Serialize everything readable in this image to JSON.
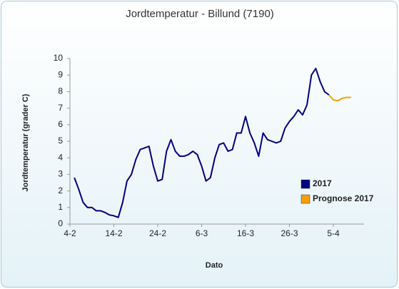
{
  "chart_data": {
    "type": "line",
    "title": "Jordtemperatur - Billund (7190)",
    "xlabel": "Dato",
    "ylabel": "Jordtemperatur (grader C)",
    "categories": [
      "4-2",
      null,
      null,
      null,
      null,
      null,
      null,
      null,
      null,
      null,
      "14-2",
      null,
      null,
      null,
      null,
      null,
      null,
      null,
      null,
      null,
      "24-2",
      null,
      null,
      null,
      null,
      null,
      null,
      null,
      null,
      null,
      "6-3",
      null,
      null,
      null,
      null,
      null,
      null,
      null,
      null,
      null,
      "16-3",
      null,
      null,
      null,
      null,
      null,
      null,
      null,
      null,
      null,
      "26-3",
      null,
      null,
      null,
      null,
      null,
      null,
      null,
      null,
      null,
      "5-4",
      null,
      null,
      null,
      null,
      null,
      null,
      null
    ],
    "series": [
      {
        "name": "2017",
        "color": "#000080",
        "values": [
          null,
          2.8,
          2.1,
          1.3,
          1.0,
          1.0,
          0.8,
          0.8,
          0.7,
          0.55,
          0.5,
          0.4,
          1.3,
          2.6,
          3.0,
          3.9,
          4.5,
          4.6,
          4.7,
          3.5,
          2.6,
          2.7,
          4.4,
          5.1,
          4.4,
          4.1,
          4.1,
          4.2,
          4.4,
          4.2,
          3.5,
          2.6,
          2.8,
          4.0,
          4.8,
          4.9,
          4.4,
          4.5,
          5.5,
          5.5,
          6.5,
          5.5,
          4.9,
          4.1,
          5.5,
          5.1,
          5.0,
          4.9,
          5.0,
          5.8,
          6.2,
          6.5,
          6.9,
          6.6,
          7.2,
          9.0,
          9.4,
          8.6,
          8.0,
          7.8,
          null,
          null,
          null,
          null,
          null,
          null,
          null,
          null
        ]
      },
      {
        "name": "Prognose 2017",
        "color": "#f5a000",
        "values": [
          null,
          null,
          null,
          null,
          null,
          null,
          null,
          null,
          null,
          null,
          null,
          null,
          null,
          null,
          null,
          null,
          null,
          null,
          null,
          null,
          null,
          null,
          null,
          null,
          null,
          null,
          null,
          null,
          null,
          null,
          null,
          null,
          null,
          null,
          null,
          null,
          null,
          null,
          null,
          null,
          null,
          null,
          null,
          null,
          null,
          null,
          null,
          null,
          null,
          null,
          null,
          null,
          null,
          null,
          null,
          null,
          null,
          null,
          null,
          7.8,
          7.5,
          7.45,
          7.6,
          7.65,
          7.65,
          null,
          null,
          null
        ]
      }
    ],
    "ylim": [
      0,
      10
    ],
    "yticks": [
      0,
      1,
      2,
      3,
      4,
      5,
      6,
      7,
      8,
      9,
      10
    ],
    "grid": false,
    "legend": "lower right"
  }
}
